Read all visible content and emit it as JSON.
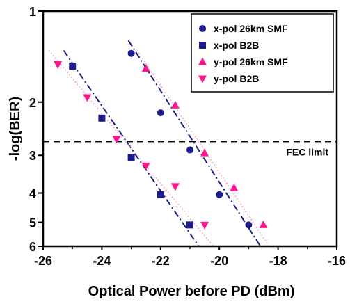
{
  "chart_data": {
    "type": "scatter",
    "xlabel": "Optical Power before PD (dBm)",
    "ylabel": "-log(BER)",
    "xlim": [
      -26,
      -16
    ],
    "ylim": [
      1,
      6
    ],
    "y_scale": "log-log",
    "x_ticks": [
      -26,
      -24,
      -22,
      -20,
      -18,
      -16
    ],
    "y_ticks": [
      1,
      2,
      3,
      4,
      5,
      6
    ],
    "grid": false,
    "legend_position": "top-right",
    "annotations": [
      {
        "text": "FEC limit",
        "y": 2.7
      }
    ],
    "series": [
      {
        "name": "x-pol 26km SMF",
        "marker": "circle",
        "color": "#1c1c8c",
        "points": [
          [
            -23,
            1.38
          ],
          [
            -22,
            2.17
          ],
          [
            -21,
            2.88
          ],
          [
            -20,
            4.05
          ],
          [
            -19,
            5.1
          ]
        ],
        "fit": {
          "style": "dash-dot",
          "color": "#1c1c8c",
          "x": [
            -23.1,
            -18.6
          ],
          "y": [
            1.25,
            6.0
          ]
        }
      },
      {
        "name": "x-pol B2B",
        "marker": "square",
        "color": "#1c1c8c",
        "points": [
          [
            -25,
            1.52
          ],
          [
            -24,
            2.26
          ],
          [
            -23,
            3.05
          ],
          [
            -22,
            4.05
          ],
          [
            -21,
            5.1
          ]
        ],
        "fit": {
          "style": "dash-dot",
          "color": "#1c1c8c",
          "x": [
            -25.3,
            -20.7
          ],
          "y": [
            1.35,
            6.0
          ]
        }
      },
      {
        "name": "y-pol 26km SMF",
        "marker": "triangle-up",
        "color": "#ff1493",
        "points": [
          [
            -22.5,
            1.55
          ],
          [
            -21.5,
            2.05
          ],
          [
            -20.5,
            2.95
          ],
          [
            -19.5,
            3.85
          ],
          [
            -18.5,
            5.1
          ]
        ],
        "fit": {
          "style": "dotted",
          "color": "#ff8fb4",
          "x": [
            -22.8,
            -18.3
          ],
          "y": [
            1.35,
            6.0
          ]
        }
      },
      {
        "name": "y-pol B2B",
        "marker": "triangle-down",
        "color": "#ff1493",
        "points": [
          [
            -25.5,
            1.5
          ],
          [
            -24.5,
            1.93
          ],
          [
            -23.5,
            2.65
          ],
          [
            -22.5,
            3.25
          ],
          [
            -21.5,
            3.8
          ],
          [
            -20.5,
            5.1
          ]
        ],
        "fit": {
          "style": "dotted",
          "color": "#ff8fb4",
          "x": [
            -25.8,
            -20.2
          ],
          "y": [
            1.35,
            6.0
          ]
        }
      }
    ]
  }
}
